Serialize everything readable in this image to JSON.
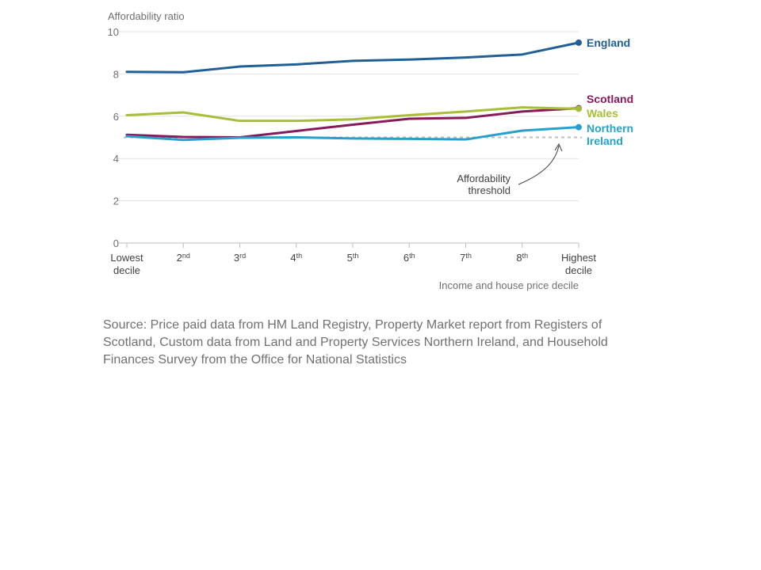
{
  "chart_data": {
    "type": "line",
    "ylabel": "Affordability ratio",
    "xlabel": "Income and house price decile",
    "ylim": [
      0,
      10
    ],
    "yticks": [
      0,
      2,
      4,
      6,
      8,
      10
    ],
    "grid": true,
    "categories": [
      {
        "main": "Lowest",
        "second": "decile",
        "sup": ""
      },
      {
        "main": "2",
        "second": "",
        "sup": "nd"
      },
      {
        "main": "3",
        "second": "",
        "sup": "rd"
      },
      {
        "main": "4",
        "second": "",
        "sup": "th"
      },
      {
        "main": "5",
        "second": "",
        "sup": "th"
      },
      {
        "main": "6",
        "second": "",
        "sup": "th"
      },
      {
        "main": "7",
        "second": "",
        "sup": "th"
      },
      {
        "main": "8",
        "second": "",
        "sup": "th"
      },
      {
        "main": "Highest",
        "second": "decile",
        "sup": ""
      }
    ],
    "series": [
      {
        "name": "England",
        "label_lines": [
          "England"
        ],
        "color": "#206095",
        "values": [
          8.1,
          8.08,
          8.35,
          8.45,
          8.62,
          8.68,
          8.78,
          8.92,
          9.48
        ]
      },
      {
        "name": "Scotland",
        "label_lines": [
          "Scotland"
        ],
        "color": "#871a5b",
        "values": [
          5.12,
          5.02,
          5.0,
          5.3,
          5.6,
          5.88,
          5.92,
          6.22,
          6.38
        ]
      },
      {
        "name": "Wales",
        "label_lines": [
          "Wales"
        ],
        "color": "#a8bd3a",
        "values": [
          6.05,
          6.18,
          5.78,
          5.78,
          5.85,
          6.05,
          6.22,
          6.42,
          6.35
        ]
      },
      {
        "name": "Northern Ireland",
        "label_lines": [
          "Northern",
          "Ireland"
        ],
        "color": "#27a0cc",
        "values": [
          5.05,
          4.88,
          4.98,
          5.0,
          4.95,
          4.93,
          4.9,
          5.32,
          5.48
        ]
      }
    ],
    "threshold": {
      "value": 5,
      "color": "#bcbcbd",
      "label_lines": [
        "Affordability",
        "threshold"
      ]
    }
  },
  "source": "Source: Price paid data from HM Land Registry, Property Market report from Registers of Scotland, Custom data from Land and Property Services Northern Ireland, and Household Finances Survey from the Office for National Statistics"
}
